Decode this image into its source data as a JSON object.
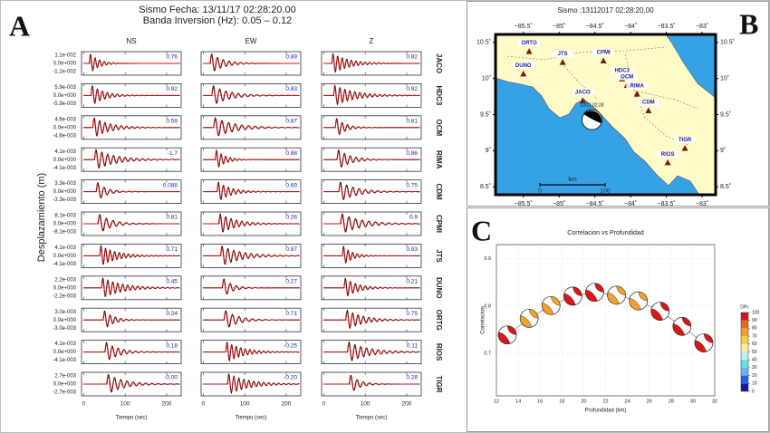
{
  "panel_labels": [
    "A",
    "B",
    "C"
  ],
  "waveforms": {
    "title": "Sismo Fecha: 13/11/17  02:28:20.00",
    "subtitle": "Banda Inversion (Hz): 0.05 – 0.12",
    "ylabel": "Desplazamiento (m)",
    "xlabel": "Tiempo (sec)",
    "components": [
      "NS",
      "EW",
      "Z"
    ],
    "xlim": [
      -5,
      235
    ],
    "xticks": [
      0,
      100,
      200
    ],
    "stations": [
      {
        "name": "JACO",
        "amplitude": [
          "1.1e-002",
          "0.0e+000",
          "-1.1e-002"
        ],
        "correlation": [
          0.76,
          0.89,
          0.82
        ]
      },
      {
        "name": "HDC3",
        "amplitude": [
          "5.9e-003",
          "0.0e+000",
          "-5.9e-003"
        ],
        "correlation": [
          0.92,
          0.83,
          0.92
        ]
      },
      {
        "name": "OCM",
        "amplitude": [
          "4.6e-003",
          "0.0e+000",
          "-4.6e-003"
        ],
        "correlation": [
          0.59,
          0.87,
          0.81
        ]
      },
      {
        "name": "RIMA",
        "amplitude": [
          "4.1e-003",
          "0.0e+000",
          "-4.1e-003"
        ],
        "correlation": [
          -1.7,
          0.88,
          0.86
        ]
      },
      {
        "name": "CDM",
        "amplitude": [
          "3.3e-003",
          "0.0e+000",
          "-3.3e-003"
        ],
        "correlation": [
          0.088,
          0.69,
          0.75
        ]
      },
      {
        "name": "CPMI",
        "amplitude": [
          "8.1e-003",
          "0.0e+000",
          "-8.1e-003"
        ],
        "correlation": [
          0.81,
          0.26,
          0.9
        ]
      },
      {
        "name": "JTS",
        "amplitude": [
          "4.1e-003",
          "0.0e+000",
          "-4.1e-003"
        ],
        "correlation": [
          0.71,
          0.87,
          0.93
        ]
      },
      {
        "name": "DUNO",
        "amplitude": [
          "2.2e-003",
          "0.0e+000",
          "-2.2e-003"
        ],
        "correlation": [
          0.45,
          0.27,
          0.21
        ]
      },
      {
        "name": "ORTG",
        "amplitude": [
          "3.0e-003",
          "0.0e+000",
          "-3.0e-003"
        ],
        "correlation": [
          0.24,
          0.71,
          0.75
        ]
      },
      {
        "name": "RIOS",
        "amplitude": [
          "4.1e-003",
          "0.0e+000",
          "-4.1e-003"
        ],
        "correlation": [
          0.18,
          -0.25,
          0.11
        ]
      },
      {
        "name": "TIGR",
        "amplitude": [
          "2.7e-003",
          "0.0e+000",
          "-2.7e-003"
        ],
        "correlation": [
          0,
          -0.2,
          0.28
        ],
        "correlation_labels": [
          "-0.00",
          "-0.20",
          "0.28"
        ]
      }
    ]
  },
  "map": {
    "title": "Sismo :13112017 02:28:20.00",
    "xlim": [
      -85.89,
      -82.81
    ],
    "ylim": [
      8.39,
      10.61
    ],
    "xticks": [
      {
        "value": -85.5,
        "label": "−85.5˚"
      },
      {
        "value": -85,
        "label": "−85˚"
      },
      {
        "value": -84.5,
        "label": "−84.5˚"
      },
      {
        "value": -84,
        "label": "−84˚"
      },
      {
        "value": -83.5,
        "label": "−83.5˚"
      },
      {
        "value": -83,
        "label": "−83˚"
      }
    ],
    "yticks": [
      {
        "value": 8.5,
        "label": "8.5˚"
      },
      {
        "value": 9,
        "label": "9˚"
      },
      {
        "value": 9.5,
        "label": "9.5˚"
      },
      {
        "value": 10,
        "label": "10˚"
      },
      {
        "value": 10.5,
        "label": "10.5˚"
      }
    ],
    "stations": [
      {
        "name": "ORTG",
        "lon": -85.42,
        "lat": 10.37
      },
      {
        "name": "DUNO",
        "lon": -85.5,
        "lat": 10.06
      },
      {
        "name": "JTS",
        "lon": -84.95,
        "lat": 10.22
      },
      {
        "name": "CPMI",
        "lon": -84.38,
        "lat": 10.24
      },
      {
        "name": "HDC3",
        "lon": -84.12,
        "lat": 9.99
      },
      {
        "name": "OCM",
        "lon": -84.05,
        "lat": 9.9
      },
      {
        "name": "RIMA",
        "lon": -83.91,
        "lat": 9.78
      },
      {
        "name": "JACO",
        "lon": -84.67,
        "lat": 9.69
      },
      {
        "name": "CDM",
        "lon": -83.75,
        "lat": 9.55
      },
      {
        "name": "TIGR",
        "lon": -83.24,
        "lat": 9.03
      },
      {
        "name": "RIOS",
        "lon": -83.48,
        "lat": 8.83
      }
    ],
    "event": {
      "label": "13/11 02:28",
      "lon": -84.54,
      "lat": 9.43
    },
    "scale": {
      "unit": "km",
      "ticks": [
        0,
        100
      ]
    }
  },
  "chart_data": {
    "type": "scatter",
    "title": "Correlacion vs Profundidad",
    "x_label": "Profundidad (km)",
    "y_label": "Correlacion",
    "x": [
      13,
      15,
      17,
      19,
      21,
      23,
      25,
      27,
      29,
      31
    ],
    "values": [
      0.739,
      0.774,
      0.801,
      0.821,
      0.829,
      0.823,
      0.811,
      0.789,
      0.757,
      0.722
    ],
    "dpc": [
      92,
      72,
      70,
      90,
      90,
      72,
      74,
      90,
      92,
      95
    ],
    "xlim": [
      12,
      32
    ],
    "xticks": [
      12,
      14,
      16,
      18,
      20,
      22,
      24,
      26,
      28,
      30,
      32
    ],
    "ylim": [
      0.61,
      0.93
    ],
    "yticks": [
      0.7,
      0.8,
      0.9
    ],
    "grid": true,
    "line_color": "#888888",
    "colorbar": {
      "label": "DPc",
      "ticks": [
        0,
        10,
        20,
        30,
        40,
        50,
        60,
        70,
        80,
        90,
        100
      ],
      "colors": [
        "#1a1aa0",
        "#2a5ee0",
        "#6fb4f0",
        "#66e0e8",
        "#b8f0f0",
        "#f8f0a0",
        "#f5d040",
        "#f0a030",
        "#e86820",
        "#d81818"
      ]
    }
  }
}
